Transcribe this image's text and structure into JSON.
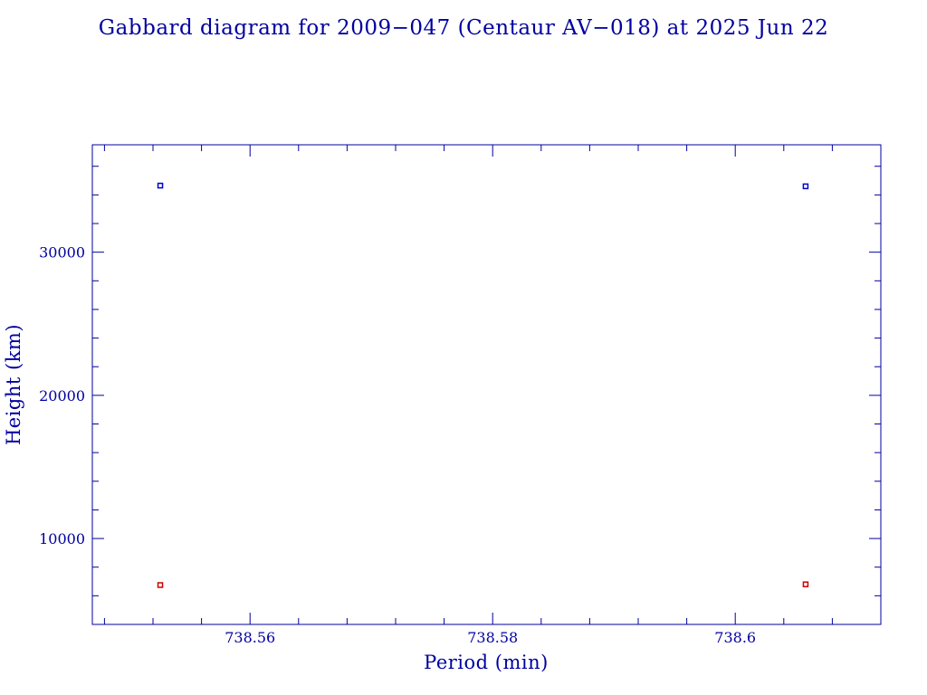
{
  "colors": {
    "frame": "#0000a0",
    "text": "#0000a0",
    "apogee": "#0000cc",
    "perigee": "#cc0000"
  },
  "chart_data": {
    "type": "scatter",
    "title": "Gabbard diagram for 2009−047 (Centaur AV−018) at 2025 Jun 22",
    "xlabel": "Period (min)",
    "ylabel": "Height (km)",
    "xlim": [
      738.547,
      738.612
    ],
    "ylim": [
      4000,
      37500
    ],
    "x_ticks": {
      "major": [
        738.56,
        738.58,
        738.6
      ],
      "labels": [
        "738.56",
        "738.58",
        "738.6"
      ],
      "minor_step": 0.004
    },
    "y_ticks": {
      "major": [
        10000,
        20000,
        30000
      ],
      "labels": [
        "10000",
        "20000",
        "30000"
      ],
      "minor_step": 2000
    },
    "grid": false,
    "series": [
      {
        "key": "apogee",
        "points": [
          {
            "x": 738.5526,
            "y": 34650
          },
          {
            "x": 738.6058,
            "y": 34600
          }
        ]
      },
      {
        "key": "perigee",
        "points": [
          {
            "x": 738.5526,
            "y": 6750
          },
          {
            "x": 738.6058,
            "y": 6800
          }
        ]
      }
    ]
  }
}
